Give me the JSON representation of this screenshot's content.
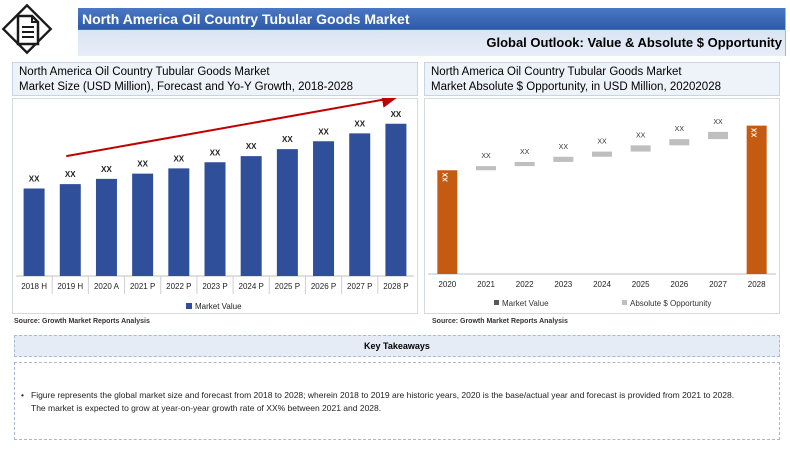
{
  "header": {
    "title": "North America Oil Country Tubular Goods Market",
    "subtitle": "Global Outlook: Value & Absolute $ Opportunity"
  },
  "left_panel": {
    "title_line1": "North America Oil Country Tubular Goods Market",
    "title_line2": "Market Size (USD Million), Forecast and Yo-Y Growth, 2018-2028",
    "source": "Source: Growth Market Reports Analysis"
  },
  "right_panel": {
    "title_line1": "North America Oil Country Tubular Goods Market",
    "title_line2": "Market Absolute $ Opportunity, in USD Million, 20202028",
    "source": "Source: Growth Market Reports Analysis"
  },
  "takeaways": {
    "heading": "Key Takeaways",
    "bullet": "•",
    "line1": "Figure represents the global market size and forecast from 2018 to 2028; wherein 2018 to 2019 are historic years, 2020 is the base/actual year and forecast is provided from 2021 to 2028.",
    "line2": "The market is expected to grow at year-on-year growth rate of XX% between 2021 and 2028."
  },
  "colors": {
    "bar_blue": "#2f4f9a",
    "arrow_red": "#c00000",
    "bar_orange": "#c55a11",
    "bar_gray": "#bfbfbf"
  },
  "chart_data": [
    {
      "type": "bar",
      "title": "Market Size (USD Million), Forecast and Yo-Y Growth, 2018-2028",
      "categories": [
        "2018 H",
        "2019 H",
        "2020 A",
        "2021 P",
        "2022 P",
        "2023 P",
        "2024 P",
        "2025 P",
        "2026 P",
        "2027 P",
        "2028 P"
      ],
      "series": [
        {
          "name": "Market Value",
          "values": [
            100,
            105,
            111,
            117,
            123,
            130,
            137,
            145,
            154,
            163,
            174
          ],
          "labels": [
            "XX",
            "XX",
            "XX",
            "XX",
            "XX",
            "XX",
            "XX",
            "XX",
            "XX",
            "XX",
            "XX"
          ]
        }
      ],
      "ylim": [
        0,
        192
      ],
      "legend": "bottom",
      "trend_arrow": true
    },
    {
      "type": "bar",
      "subtype": "waterfall",
      "title": "Market Absolute $ Opportunity, in USD Million, 20202028",
      "categories": [
        "2020",
        "2021",
        "2022",
        "2023",
        "2024",
        "2025",
        "2026",
        "2027",
        "2028"
      ],
      "series": [
        {
          "name": "Market Value",
          "values": [
            100,
            null,
            null,
            null,
            null,
            null,
            null,
            null,
            143
          ]
        },
        {
          "name": "Absolute $ Opportunity",
          "values": [
            null,
            4,
            4,
            5,
            5,
            6,
            6,
            7,
            null
          ]
        }
      ],
      "base_cumulative": [
        null,
        100,
        104,
        108,
        113,
        118,
        124,
        130,
        null
      ],
      "labels": [
        "XX",
        "XX",
        "XX",
        "XX",
        "XX",
        "XX",
        "XX",
        "XX",
        "XX"
      ],
      "ylim": [
        0,
        160
      ],
      "legend": "bottom"
    }
  ]
}
